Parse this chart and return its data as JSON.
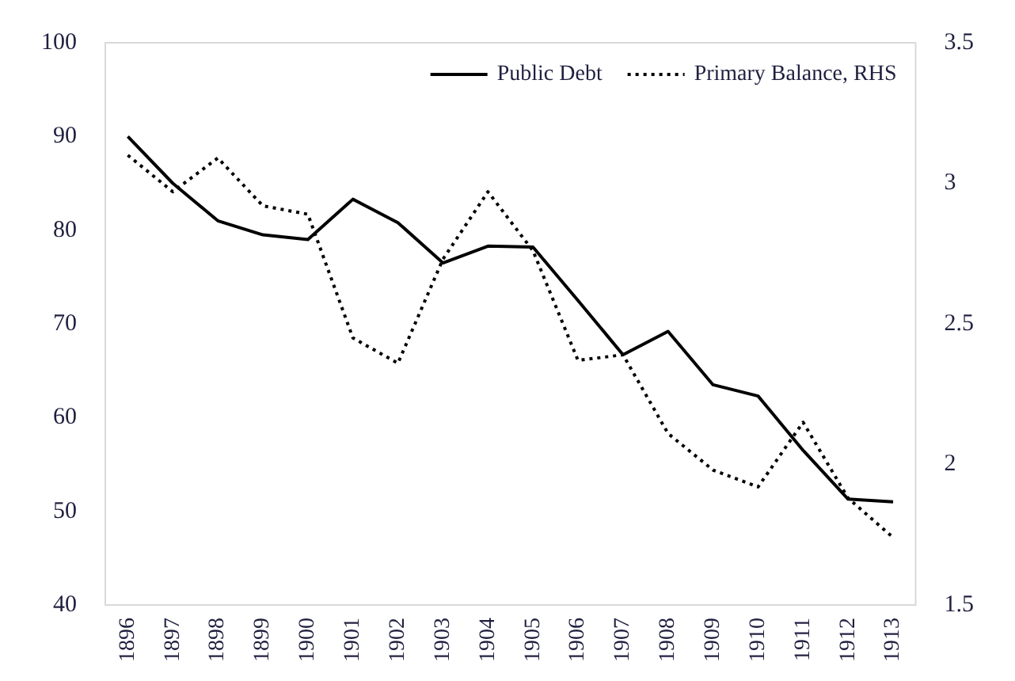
{
  "chart_data": {
    "type": "line",
    "categories": [
      "1896",
      "1897",
      "1898",
      "1899",
      "1900",
      "1901",
      "1902",
      "1903",
      "1904",
      "1905",
      "1906",
      "1907",
      "1908",
      "1909",
      "1910",
      "1911",
      "1912",
      "1913"
    ],
    "series": [
      {
        "name": "Public Debt",
        "color": "#000000",
        "line_style": "solid",
        "values": [
          90,
          85,
          81,
          79.5,
          79,
          83.3,
          80.8,
          76.5,
          78.3,
          78.2,
          72.5,
          66.7,
          69.2,
          63.5,
          62.3,
          56.5,
          51.3,
          51
        ]
      },
      {
        "name": "Primary Balance, RHS",
        "color": "#000000",
        "line_style": "dotted",
        "axis": "y2",
        "values": [
          3.1,
          2.97,
          3.09,
          2.92,
          2.89,
          2.45,
          2.36,
          2.73,
          2.97,
          2.76,
          2.37,
          2.39,
          2.11,
          1.98,
          1.92,
          2.15,
          1.88,
          1.74
        ]
      }
    ],
    "ylim": [
      40,
      100
    ],
    "yticks": [
      40,
      50,
      60,
      70,
      80,
      90,
      100
    ],
    "y2lim": [
      1.5,
      3.5
    ],
    "y2ticks": [
      1.5,
      2,
      2.5,
      3,
      3.5
    ],
    "legend": "top right",
    "grid": false,
    "marker": "none"
  }
}
